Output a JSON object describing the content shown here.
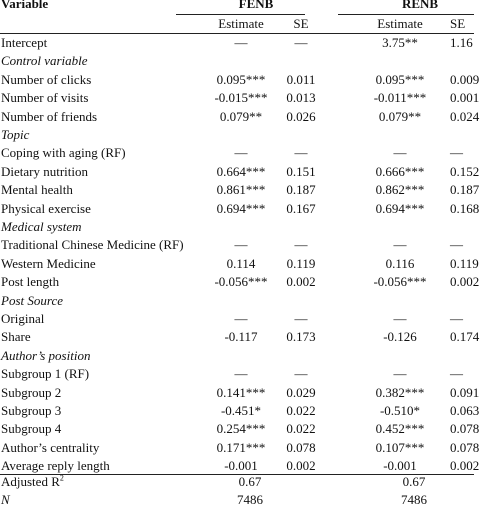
{
  "header": {
    "variable_label": "Variable",
    "fenb": "FENB",
    "renb": "RENB",
    "estimate": "Estimate",
    "se": "SE"
  },
  "rows": [
    {
      "label": "Intercept",
      "style": "normal",
      "fe": "—",
      "fse": "—",
      "re": "3.75**",
      "rse": "1.16"
    },
    {
      "label": "Control variable",
      "style": "section",
      "fe": "",
      "fse": "",
      "re": "",
      "rse": ""
    },
    {
      "label": "Number of clicks",
      "style": "normal",
      "fe": "0.095***",
      "fse": "0.011",
      "re": "0.095***",
      "rse": "0.009"
    },
    {
      "label": "Number of visits",
      "style": "normal",
      "fe": "-0.015***",
      "fse": "0.013",
      "re": "-0.011***",
      "rse": "0.001"
    },
    {
      "label": "Number of friends",
      "style": "normal",
      "fe": "0.079**",
      "fse": "0.026",
      "re": "0.079**",
      "rse": "0.024"
    },
    {
      "label": "Topic",
      "style": "section",
      "fe": "",
      "fse": "",
      "re": "",
      "rse": ""
    },
    {
      "label": "Coping with aging (RF)",
      "style": "normal",
      "fe": "—",
      "fse": "—",
      "re": "—",
      "rse": "—"
    },
    {
      "label": "Dietary nutrition",
      "style": "normal",
      "fe": "0.664***",
      "fse": "0.151",
      "re": "0.666***",
      "rse": "0.152"
    },
    {
      "label": "Mental health",
      "style": "normal",
      "fe": "0.861***",
      "fse": "0.187",
      "re": "0.862***",
      "rse": "0.187"
    },
    {
      "label": "Physical exercise",
      "style": "normal",
      "fe": "0.694***",
      "fse": "0.167",
      "re": "0.694***",
      "rse": "0.168"
    },
    {
      "label": "Medical system",
      "style": "section",
      "fe": "",
      "fse": "",
      "re": "",
      "rse": ""
    },
    {
      "label": "Traditional Chinese Medicine (RF)",
      "style": "normal",
      "fe": "—",
      "fse": "—",
      "re": "—",
      "rse": "—"
    },
    {
      "label": "Western Medicine",
      "style": "normal",
      "fe": "0.114",
      "fse": "0.119",
      "re": "0.116",
      "rse": "0.119"
    },
    {
      "label": "Post length",
      "style": "normal",
      "fe": "-0.056***",
      "fse": "0.002",
      "re": "-0.056***",
      "rse": "0.002"
    },
    {
      "label": "Post Source",
      "style": "section",
      "fe": "",
      "fse": "",
      "re": "",
      "rse": ""
    },
    {
      "label": "Original",
      "style": "normal",
      "fe": "—",
      "fse": "—",
      "re": "—",
      "rse": "—"
    },
    {
      "label": "Share",
      "style": "normal",
      "fe": "-0.117",
      "fse": "0.173",
      "re": "-0.126",
      "rse": "0.174"
    },
    {
      "label": "Author’s position",
      "style": "section",
      "fe": "",
      "fse": "",
      "re": "",
      "rse": ""
    },
    {
      "label": "Subgroup 1 (RF)",
      "style": "normal",
      "fe": "—",
      "fse": "—",
      "re": "—",
      "rse": "—"
    },
    {
      "label": "Subgroup 2",
      "style": "normal",
      "fe": "0.141***",
      "fse": "0.029",
      "re": "0.382***",
      "rse": "0.091"
    },
    {
      "label": "Subgroup 3",
      "style": "normal",
      "fe": "-0.451*",
      "fse": "0.022",
      "re": "-0.510*",
      "rse": "0.063"
    },
    {
      "label": "Subgroup 4",
      "style": "normal",
      "fe": "0.254***",
      "fse": "0.022",
      "re": "0.452***",
      "rse": "0.078"
    },
    {
      "label": "Author’s centrality",
      "style": "normal",
      "fe": "0.171***",
      "fse": "0.078",
      "re": "0.107***",
      "rse": "0.078"
    },
    {
      "label": "Average reply length",
      "style": "normal",
      "fe": "-0.001",
      "fse": "0.002",
      "re": "-0.001",
      "rse": "0.002"
    }
  ],
  "footer": {
    "adjusted_r2_label": "Adjusted R",
    "adjusted_r2_sup": "2",
    "adjusted_r2_fenb": "0.67",
    "adjusted_r2_renb": "0.67",
    "n_label": "N",
    "n_fenb": "7486",
    "n_renb": "7486"
  }
}
